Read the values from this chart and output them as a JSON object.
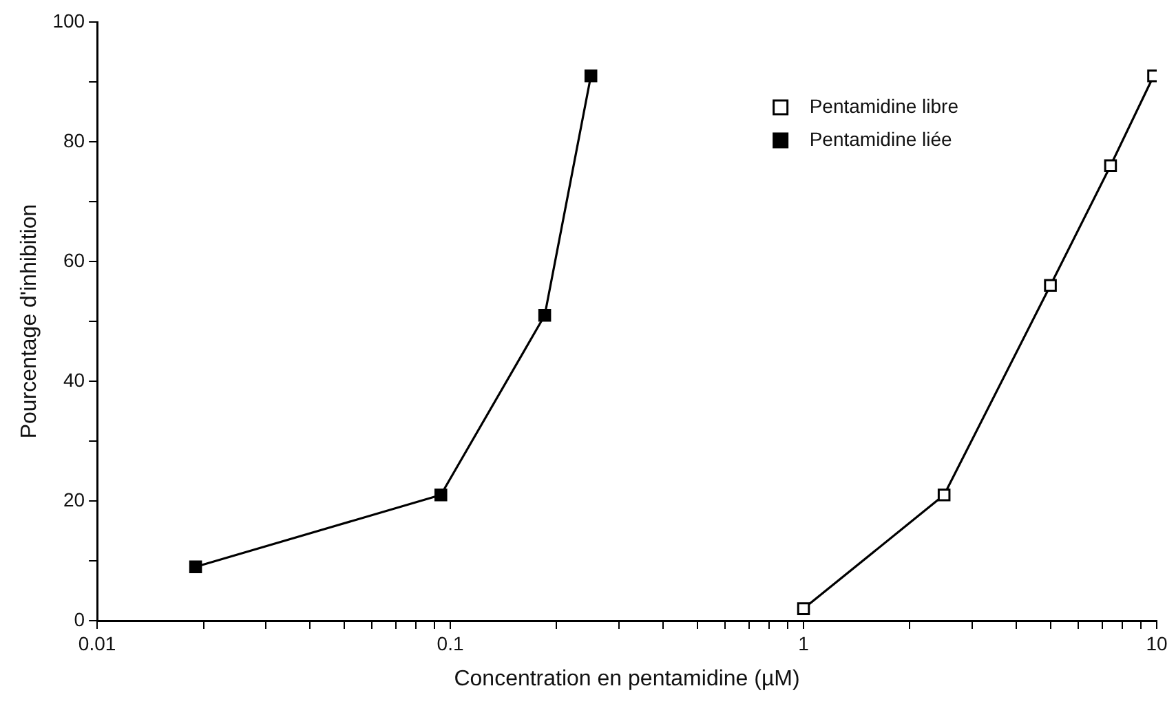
{
  "chart_data": {
    "type": "line",
    "xlabel": "Concentration en pentamidine (µM)",
    "ylabel": "Pourcentage d'inhibition",
    "log": "x",
    "xlim": [
      0.01,
      10
    ],
    "ylim": [
      0,
      100
    ],
    "xticks": [
      0.01,
      {
        "value": 0.02,
        "label": null
      },
      {
        "value": 0.03,
        "label": null
      },
      {
        "value": 0.04,
        "label": null
      },
      {
        "value": 0.05,
        "label": null
      },
      {
        "value": 0.06,
        "label": null
      },
      {
        "value": 0.07,
        "label": null
      },
      {
        "value": 0.08,
        "label": null
      },
      {
        "value": 0.09,
        "label": null
      },
      0.1,
      {
        "value": 0.2,
        "label": null
      },
      {
        "value": 0.3,
        "label": null
      },
      {
        "value": 0.4,
        "label": null
      },
      {
        "value": 0.5,
        "label": null
      },
      {
        "value": 0.6,
        "label": null
      },
      {
        "value": 0.7,
        "label": null
      },
      {
        "value": 0.8,
        "label": null
      },
      {
        "value": 0.9,
        "label": null
      },
      1,
      {
        "value": 2,
        "label": null
      },
      {
        "value": 3,
        "label": null
      },
      {
        "value": 4,
        "label": null
      },
      {
        "value": 5,
        "label": null
      },
      {
        "value": 6,
        "label": null
      },
      {
        "value": 7,
        "label": null
      },
      {
        "value": 8,
        "label": null
      },
      {
        "value": 9,
        "label": null
      },
      10
    ],
    "yticks": [
      0,
      {
        "value": 10,
        "label": null
      },
      20,
      {
        "value": 30,
        "label": null
      },
      40,
      {
        "value": 50,
        "label": null
      },
      60,
      {
        "value": 70,
        "label": null
      },
      80,
      {
        "value": 90,
        "label": null
      },
      100
    ],
    "grid": false,
    "legend": "top right",
    "marker": "square",
    "line_style": "solid",
    "series": [
      {
        "name": "Pentamidine libre",
        "color": "#ffffff",
        "x": [
          1,
          2.5,
          5,
          7.4,
          9.8
        ],
        "values": [
          2,
          21,
          56,
          76,
          91
        ]
      },
      {
        "name": "Pentamidine liée",
        "color": "#000000",
        "x": [
          0.019,
          0.094,
          0.185,
          0.25
        ],
        "values": [
          9,
          21,
          51,
          91
        ]
      }
    ]
  }
}
